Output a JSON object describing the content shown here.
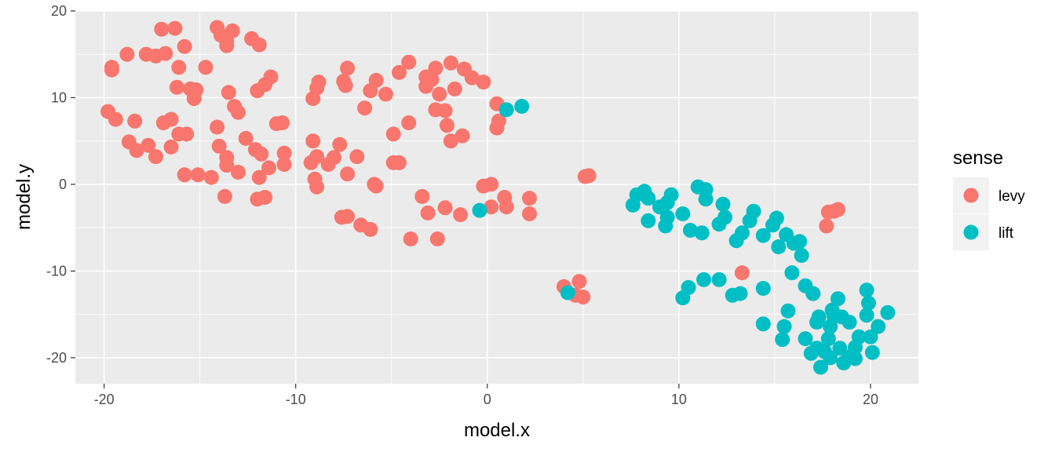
{
  "chart_data": {
    "type": "scatter",
    "title": "",
    "xlabel": "model.x",
    "ylabel": "model.y",
    "xlim": [
      -21.5,
      22.5
    ],
    "ylim": [
      -23,
      20
    ],
    "x_ticks": [
      -20,
      -10,
      0,
      10,
      20
    ],
    "y_ticks": [
      -20,
      -10,
      0,
      10,
      20
    ],
    "x_tick_labels": [
      "-20",
      "-10",
      "0",
      "10",
      "20"
    ],
    "y_tick_labels": [
      "-20",
      "-10",
      "0",
      "10",
      "20"
    ],
    "grid": true,
    "legend": {
      "title": "sense",
      "position": "right"
    },
    "series": [
      {
        "name": "levy",
        "color": "#F8766D",
        "points": [
          [
            -19.6,
            13.5
          ],
          [
            -19.6,
            13.2
          ],
          [
            -18.8,
            15
          ],
          [
            -17.8,
            15
          ],
          [
            -17.3,
            14.8
          ],
          [
            -16.8,
            15.1
          ],
          [
            -17,
            17.9
          ],
          [
            -16.3,
            18
          ],
          [
            -16.1,
            13.5
          ],
          [
            -15.8,
            15.9
          ],
          [
            -14.7,
            13.5
          ],
          [
            -14.1,
            18.1
          ],
          [
            -13.9,
            17.2
          ],
          [
            -13.6,
            16.5
          ],
          [
            -13.6,
            16
          ],
          [
            -13.3,
            17.7
          ],
          [
            -12.3,
            16.8
          ],
          [
            -11.9,
            16.1
          ],
          [
            -11.3,
            12.4
          ],
          [
            -11.6,
            11.5
          ],
          [
            -12,
            10.8
          ],
          [
            -13.5,
            10.6
          ],
          [
            -13.2,
            9
          ],
          [
            -13,
            8.3
          ],
          [
            -15.5,
            11
          ],
          [
            -15.2,
            10.9
          ],
          [
            -15.3,
            9.9
          ],
          [
            -16.2,
            11.2
          ],
          [
            -19.8,
            8.4
          ],
          [
            -19.4,
            7.5
          ],
          [
            -18.4,
            7.3
          ],
          [
            -16.9,
            7.1
          ],
          [
            -16.5,
            7.5
          ],
          [
            -18.7,
            4.9
          ],
          [
            -18.3,
            3.9
          ],
          [
            -17.7,
            4.5
          ],
          [
            -17.3,
            3.2
          ],
          [
            -16.5,
            4.3
          ],
          [
            -16.1,
            5.8
          ],
          [
            -15.7,
            5.8
          ],
          [
            -14.1,
            6.6
          ],
          [
            -14,
            4.4
          ],
          [
            -13.6,
            3.1
          ],
          [
            -13.6,
            2.2
          ],
          [
            -13,
            1.4
          ],
          [
            -12.6,
            5.3
          ],
          [
            -12.1,
            4
          ],
          [
            -11.8,
            3.5
          ],
          [
            -11.4,
            1.9
          ],
          [
            -11,
            7
          ],
          [
            -10.7,
            7.1
          ],
          [
            -10.6,
            3.6
          ],
          [
            -10.6,
            2.3
          ],
          [
            -11.9,
            0.8
          ],
          [
            -12,
            -1.7
          ],
          [
            -11.6,
            -1.5
          ],
          [
            -13.7,
            -1.4
          ],
          [
            -14.4,
            0.8
          ],
          [
            -15.1,
            1.1
          ],
          [
            -15.8,
            1.1
          ],
          [
            -9.1,
            9.9
          ],
          [
            -8.9,
            11.1
          ],
          [
            -8.8,
            11.8
          ],
          [
            -9.1,
            5
          ],
          [
            -8.9,
            3.2
          ],
          [
            -9.2,
            2.5
          ],
          [
            -9,
            0.6
          ],
          [
            -8.9,
            -0.3
          ],
          [
            -8.3,
            2.3
          ],
          [
            -8,
            3.1
          ],
          [
            -7.7,
            4.6
          ],
          [
            -7.3,
            1.2
          ],
          [
            -6.8,
            3.2
          ],
          [
            -7.6,
            -3.8
          ],
          [
            -7.3,
            -3.7
          ],
          [
            -6.6,
            -4.7
          ],
          [
            -6.1,
            -5.2
          ],
          [
            -7.5,
            11.9
          ],
          [
            -7.3,
            13.4
          ],
          [
            -7.4,
            11.4
          ],
          [
            -6.4,
            8.8
          ],
          [
            -6.1,
            10.8
          ],
          [
            -5.8,
            12
          ],
          [
            -5.9,
            0
          ],
          [
            -5.8,
            -0.2
          ],
          [
            -5.3,
            10.4
          ],
          [
            -4.9,
            5.8
          ],
          [
            -4.9,
            2.5
          ],
          [
            -4.6,
            2.5
          ],
          [
            -4.6,
            12.9
          ],
          [
            -4.1,
            14.1
          ],
          [
            -4.1,
            7.1
          ],
          [
            -4,
            -6.3
          ],
          [
            -3.4,
            -1.4
          ],
          [
            -3.1,
            -3.3
          ],
          [
            -3.2,
            12.4
          ],
          [
            -3.2,
            11.3
          ],
          [
            -2.7,
            13.4
          ],
          [
            -2.9,
            12.1
          ],
          [
            -2.5,
            10.4
          ],
          [
            -2.7,
            8.6
          ],
          [
            -2.2,
            8.5
          ],
          [
            -2.1,
            6.8
          ],
          [
            -1.9,
            14
          ],
          [
            -1.7,
            11
          ],
          [
            -1.9,
            5
          ],
          [
            -1.3,
            5.6
          ],
          [
            -2.6,
            -6.3
          ],
          [
            -2.2,
            -2.7
          ],
          [
            -1.4,
            -3.5
          ],
          [
            -1.2,
            13.3
          ],
          [
            -0.8,
            12.3
          ],
          [
            -0.2,
            11.8
          ],
          [
            0.5,
            9.3
          ],
          [
            0.6,
            7.3
          ],
          [
            0.5,
            6.5
          ],
          [
            -0.2,
            -0.2
          ],
          [
            0.2,
            0
          ],
          [
            0.2,
            -2.6
          ],
          [
            0.9,
            -1.5
          ],
          [
            1,
            -2.6
          ],
          [
            2.2,
            -1.6
          ],
          [
            2.2,
            -3.4
          ],
          [
            5.1,
            0.9
          ],
          [
            5.3,
            1
          ],
          [
            4,
            -11.8
          ],
          [
            4.8,
            -11.2
          ],
          [
            4.6,
            -12.8
          ],
          [
            5,
            -13
          ],
          [
            13.3,
            -10.2
          ],
          [
            17.7,
            -4.8
          ],
          [
            17.8,
            -3.2
          ],
          [
            18.1,
            -3.1
          ],
          [
            18.3,
            -2.9
          ]
        ]
      },
      {
        "name": "lift",
        "color": "#00BFC4",
        "points": [
          [
            1,
            8.6
          ],
          [
            1.8,
            9
          ],
          [
            -0.4,
            -3
          ],
          [
            4.2,
            -12.5
          ],
          [
            7.6,
            -2.4
          ],
          [
            7.8,
            -1.2
          ],
          [
            8.2,
            -0.8
          ],
          [
            8.4,
            -1.6
          ],
          [
            8.4,
            -4.2
          ],
          [
            9,
            -2.6
          ],
          [
            9.3,
            -4.8
          ],
          [
            9.4,
            -3.8
          ],
          [
            9.6,
            -1.2
          ],
          [
            9.4,
            -2.1
          ],
          [
            10.2,
            -3.4
          ],
          [
            10.6,
            -5.3
          ],
          [
            11,
            -0.3
          ],
          [
            11.2,
            -5.6
          ],
          [
            11.4,
            -0.6
          ],
          [
            11.4,
            -1.7
          ],
          [
            12.1,
            -4.6
          ],
          [
            12.3,
            -2.3
          ],
          [
            12.4,
            -3.8
          ],
          [
            13,
            -6.5
          ],
          [
            13.3,
            -5.6
          ],
          [
            13.7,
            -4.2
          ],
          [
            13.9,
            -3.1
          ],
          [
            14.4,
            -5.9
          ],
          [
            14.9,
            -4.7
          ],
          [
            15.1,
            -3.9
          ],
          [
            15.2,
            -7.2
          ],
          [
            15.6,
            -5.8
          ],
          [
            16,
            -6.8
          ],
          [
            16.3,
            -6.6
          ],
          [
            16.4,
            -8.2
          ],
          [
            15.9,
            -10.2
          ],
          [
            16.6,
            -11.7
          ],
          [
            17,
            -12.6
          ],
          [
            10.2,
            -13.1
          ],
          [
            10.5,
            -11.9
          ],
          [
            11.3,
            -11
          ],
          [
            12.1,
            -11
          ],
          [
            12.8,
            -12.8
          ],
          [
            13.2,
            -12.6
          ],
          [
            14.4,
            -12
          ],
          [
            14.4,
            -16.1
          ],
          [
            15.5,
            -16.4
          ],
          [
            15.7,
            -14.6
          ],
          [
            15.4,
            -17.9
          ],
          [
            16.6,
            -17.8
          ],
          [
            16.9,
            -19.5
          ],
          [
            17.2,
            -15.9
          ],
          [
            17.3,
            -15.3
          ],
          [
            17.2,
            -18.9
          ],
          [
            17.4,
            -21.1
          ],
          [
            17.6,
            -19.3
          ],
          [
            17.8,
            -17.8
          ],
          [
            17.9,
            -16.4
          ],
          [
            17.9,
            -20
          ],
          [
            18,
            -14.5
          ],
          [
            18.1,
            -15.2
          ],
          [
            18.3,
            -13.2
          ],
          [
            18.5,
            -15.3
          ],
          [
            18.4,
            -18.9
          ],
          [
            18.6,
            -20.6
          ],
          [
            18.9,
            -19.9
          ],
          [
            18.9,
            -15.9
          ],
          [
            19.2,
            -18.8
          ],
          [
            19.2,
            -20.1
          ],
          [
            19.4,
            -17.6
          ],
          [
            19.8,
            -12.2
          ],
          [
            19.9,
            -13.7
          ],
          [
            19.8,
            -15.1
          ],
          [
            20,
            -17.6
          ],
          [
            20.1,
            -19.4
          ],
          [
            20.4,
            -16.4
          ],
          [
            20.9,
            -14.8
          ]
        ]
      }
    ]
  }
}
